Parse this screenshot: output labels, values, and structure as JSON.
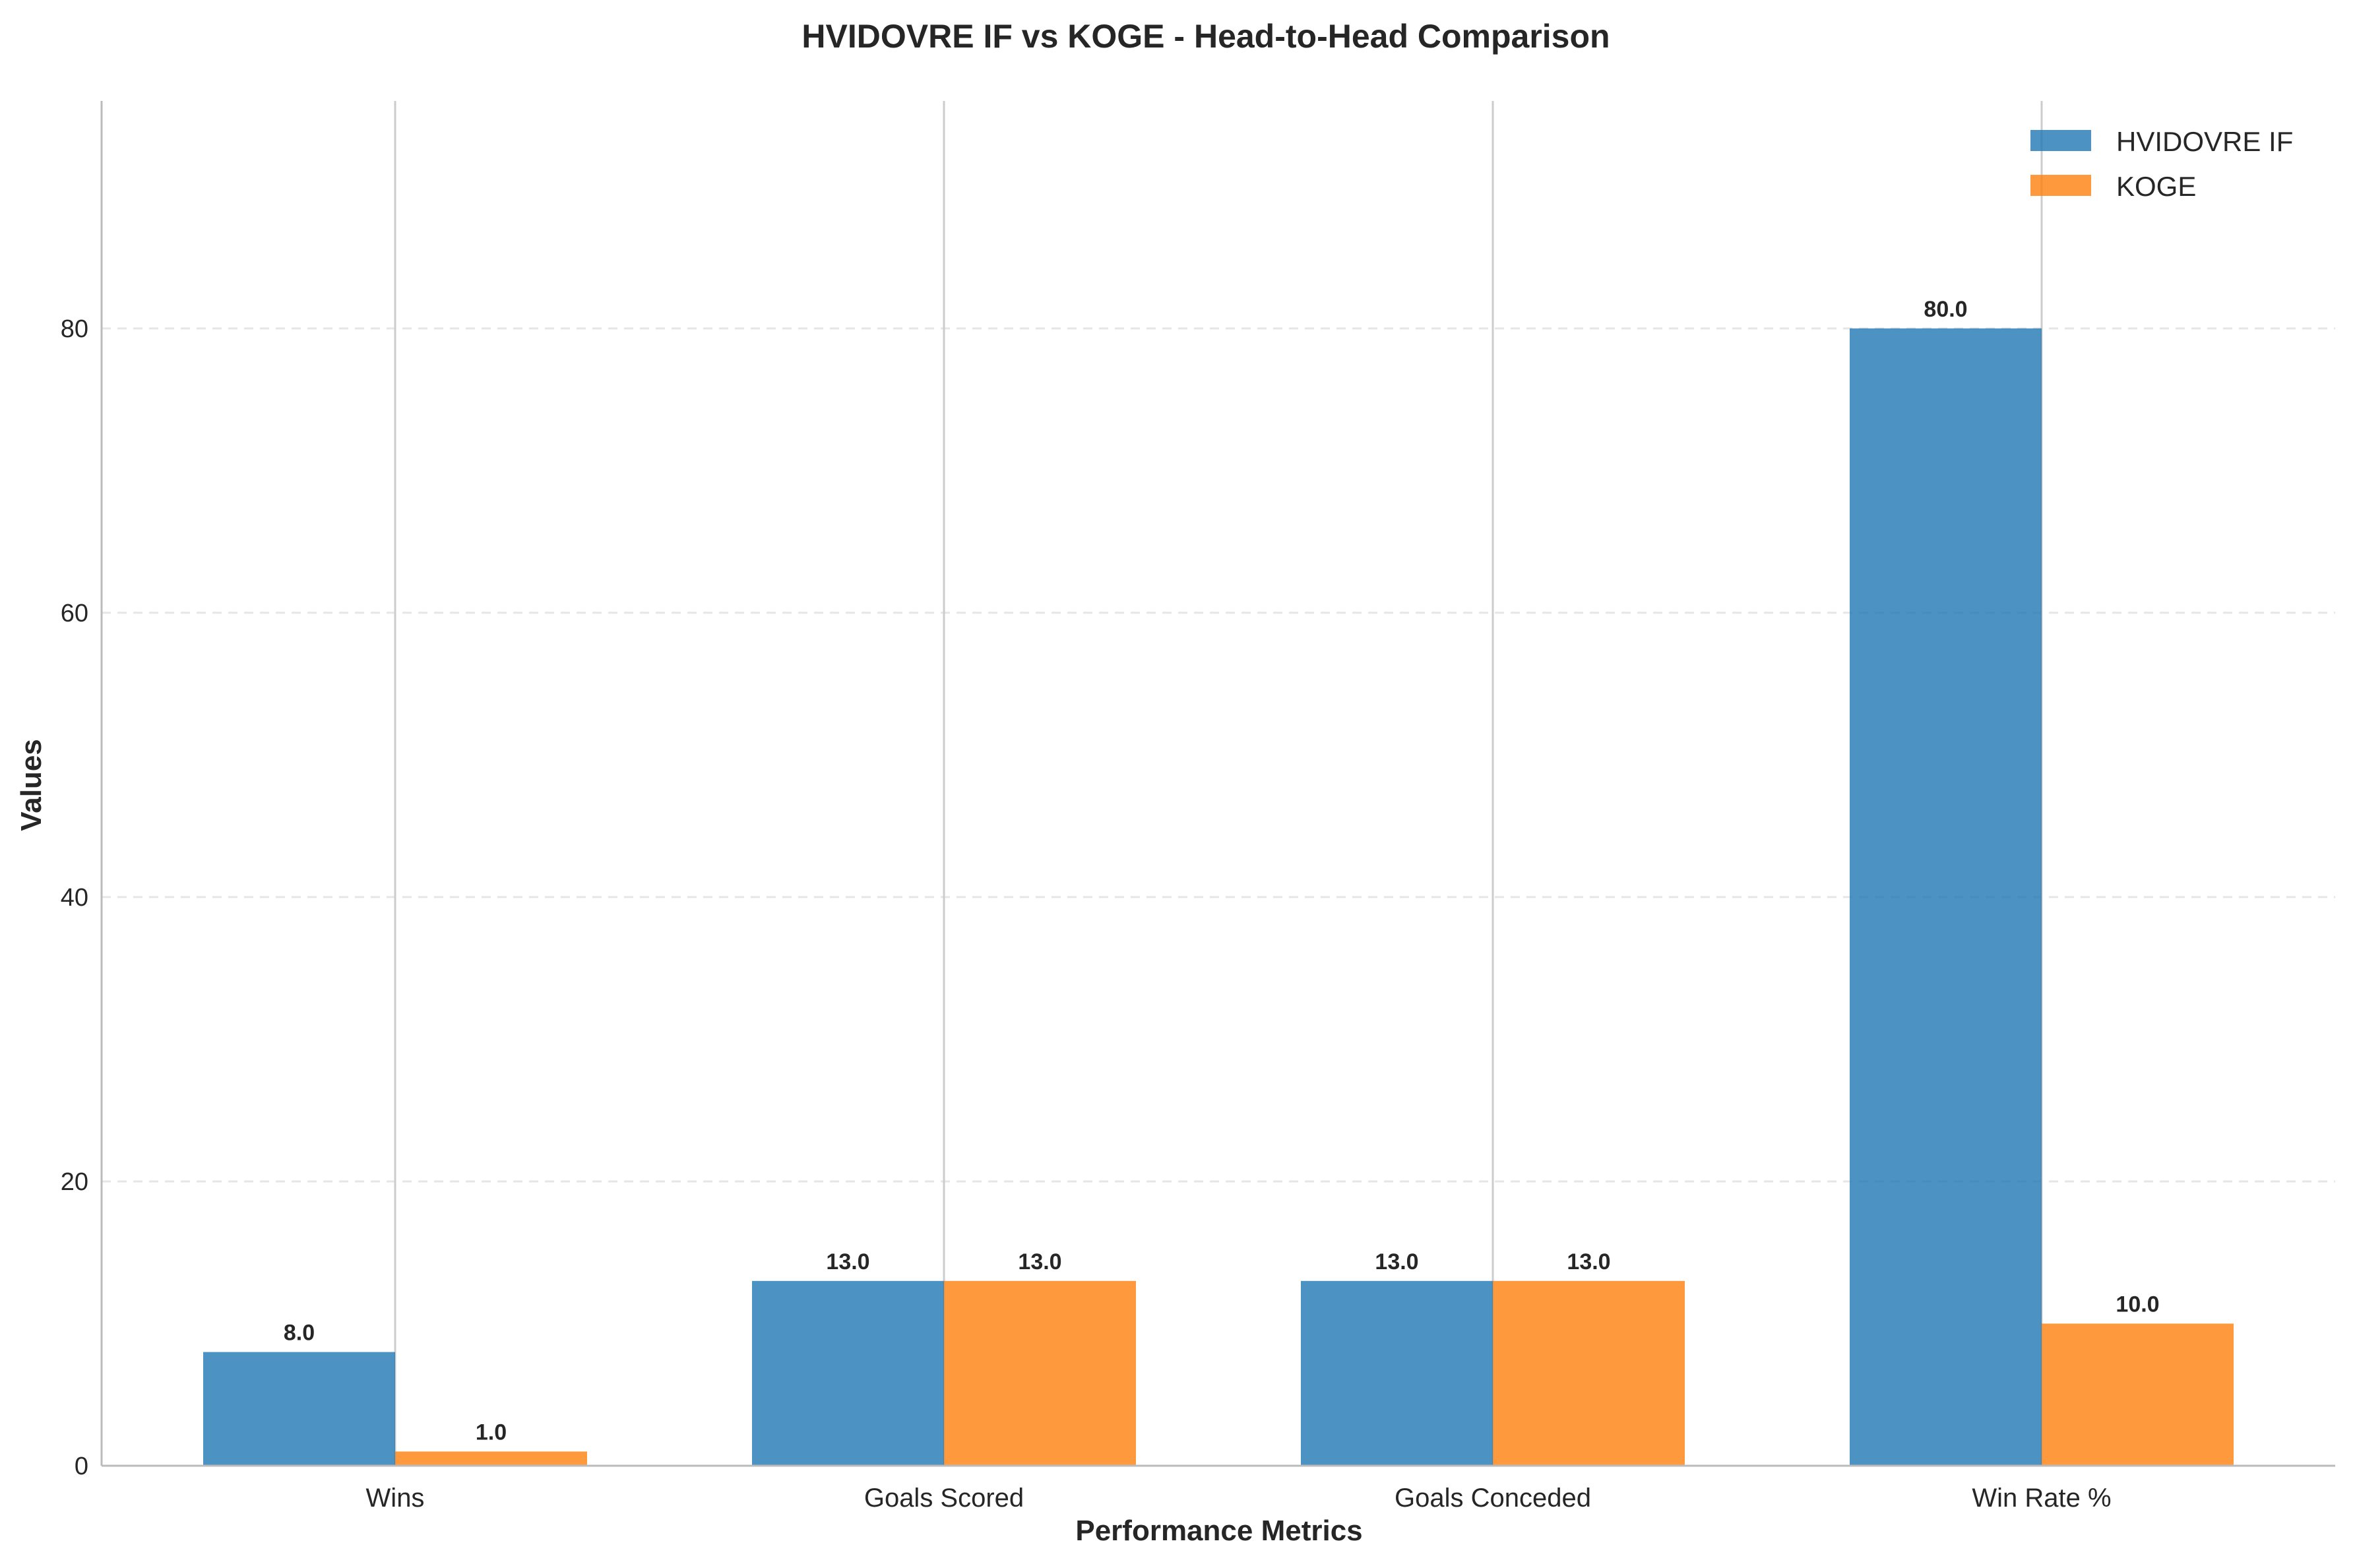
{
  "chart_data": {
    "type": "bar",
    "title": "HVIDOVRE IF vs KOGE - Head-to-Head Comparison",
    "xlabel": "Performance Metrics",
    "ylabel": "Values",
    "categories": [
      "Wins",
      "Goals Scored",
      "Goals Conceded",
      "Win Rate %"
    ],
    "series": [
      {
        "name": "HVIDOVRE IF",
        "color": "#1f77b4",
        "values": [
          8.0,
          13.0,
          13.0,
          80.0
        ]
      },
      {
        "name": "KOGE",
        "color": "#ff7f0e",
        "values": [
          1.0,
          13.0,
          13.0,
          10.0
        ]
      }
    ],
    "value_labels": [
      [
        "8.0",
        "13.0",
        "13.0",
        "80.0"
      ],
      [
        "1.0",
        "13.0",
        "13.0",
        "10.0"
      ]
    ],
    "ylim": [
      0,
      96
    ],
    "yticks": [
      0,
      20,
      40,
      60,
      80
    ],
    "grid": {
      "y": true,
      "x_category_lines": true
    },
    "legend_position": "top-right"
  }
}
